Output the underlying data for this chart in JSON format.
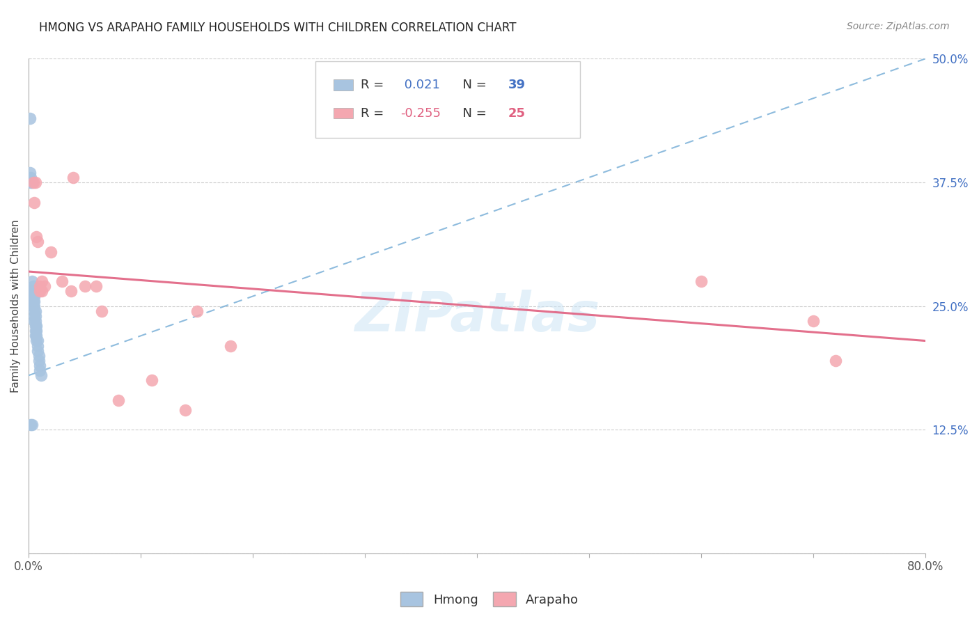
{
  "title": "HMONG VS ARAPAHO FAMILY HOUSEHOLDS WITH CHILDREN CORRELATION CHART",
  "source": "Source: ZipAtlas.com",
  "ylabel": "Family Households with Children",
  "xlabel": "",
  "xlim": [
    0.0,
    0.8
  ],
  "ylim": [
    0.0,
    0.5
  ],
  "ytick_positions": [
    0.0,
    0.125,
    0.25,
    0.375,
    0.5
  ],
  "ytick_labels": [
    "",
    "12.5%",
    "25.0%",
    "37.5%",
    "50.0%"
  ],
  "hmong_R": 0.021,
  "hmong_N": 39,
  "arapaho_R": -0.255,
  "arapaho_N": 25,
  "hmong_color": "#a8c4e0",
  "arapaho_color": "#f4a7b0",
  "hmong_trendline_color": "#7ab0d8",
  "arapaho_trendline_color": "#e06080",
  "watermark": "ZIPatlas",
  "hmong_x": [
    0.001,
    0.001,
    0.002,
    0.002,
    0.002,
    0.003,
    0.003,
    0.003,
    0.003,
    0.004,
    0.004,
    0.004,
    0.004,
    0.004,
    0.005,
    0.005,
    0.005,
    0.005,
    0.005,
    0.005,
    0.005,
    0.006,
    0.006,
    0.006,
    0.006,
    0.006,
    0.006,
    0.007,
    0.007,
    0.007,
    0.007,
    0.008,
    0.008,
    0.008,
    0.009,
    0.009,
    0.01,
    0.01,
    0.011
  ],
  "hmong_y": [
    0.44,
    0.385,
    0.375,
    0.38,
    0.13,
    0.375,
    0.13,
    0.275,
    0.265,
    0.27,
    0.265,
    0.26,
    0.255,
    0.25,
    0.265,
    0.26,
    0.255,
    0.25,
    0.245,
    0.24,
    0.235,
    0.245,
    0.24,
    0.235,
    0.23,
    0.225,
    0.22,
    0.23,
    0.225,
    0.22,
    0.215,
    0.215,
    0.21,
    0.205,
    0.2,
    0.195,
    0.19,
    0.185,
    0.18
  ],
  "arapaho_x": [
    0.004,
    0.005,
    0.006,
    0.007,
    0.008,
    0.01,
    0.01,
    0.012,
    0.012,
    0.014,
    0.02,
    0.03,
    0.038,
    0.04,
    0.05,
    0.06,
    0.065,
    0.08,
    0.11,
    0.14,
    0.15,
    0.18,
    0.6,
    0.7,
    0.72
  ],
  "arapaho_y": [
    0.375,
    0.355,
    0.375,
    0.32,
    0.315,
    0.27,
    0.265,
    0.275,
    0.265,
    0.27,
    0.305,
    0.275,
    0.265,
    0.38,
    0.27,
    0.27,
    0.245,
    0.155,
    0.175,
    0.145,
    0.245,
    0.21,
    0.275,
    0.235,
    0.195
  ],
  "hmong_trend_x": [
    0.0,
    0.8
  ],
  "hmong_trend_y": [
    0.18,
    0.5
  ],
  "arapaho_trend_x": [
    0.0,
    0.8
  ],
  "arapaho_trend_y": [
    0.285,
    0.215
  ]
}
